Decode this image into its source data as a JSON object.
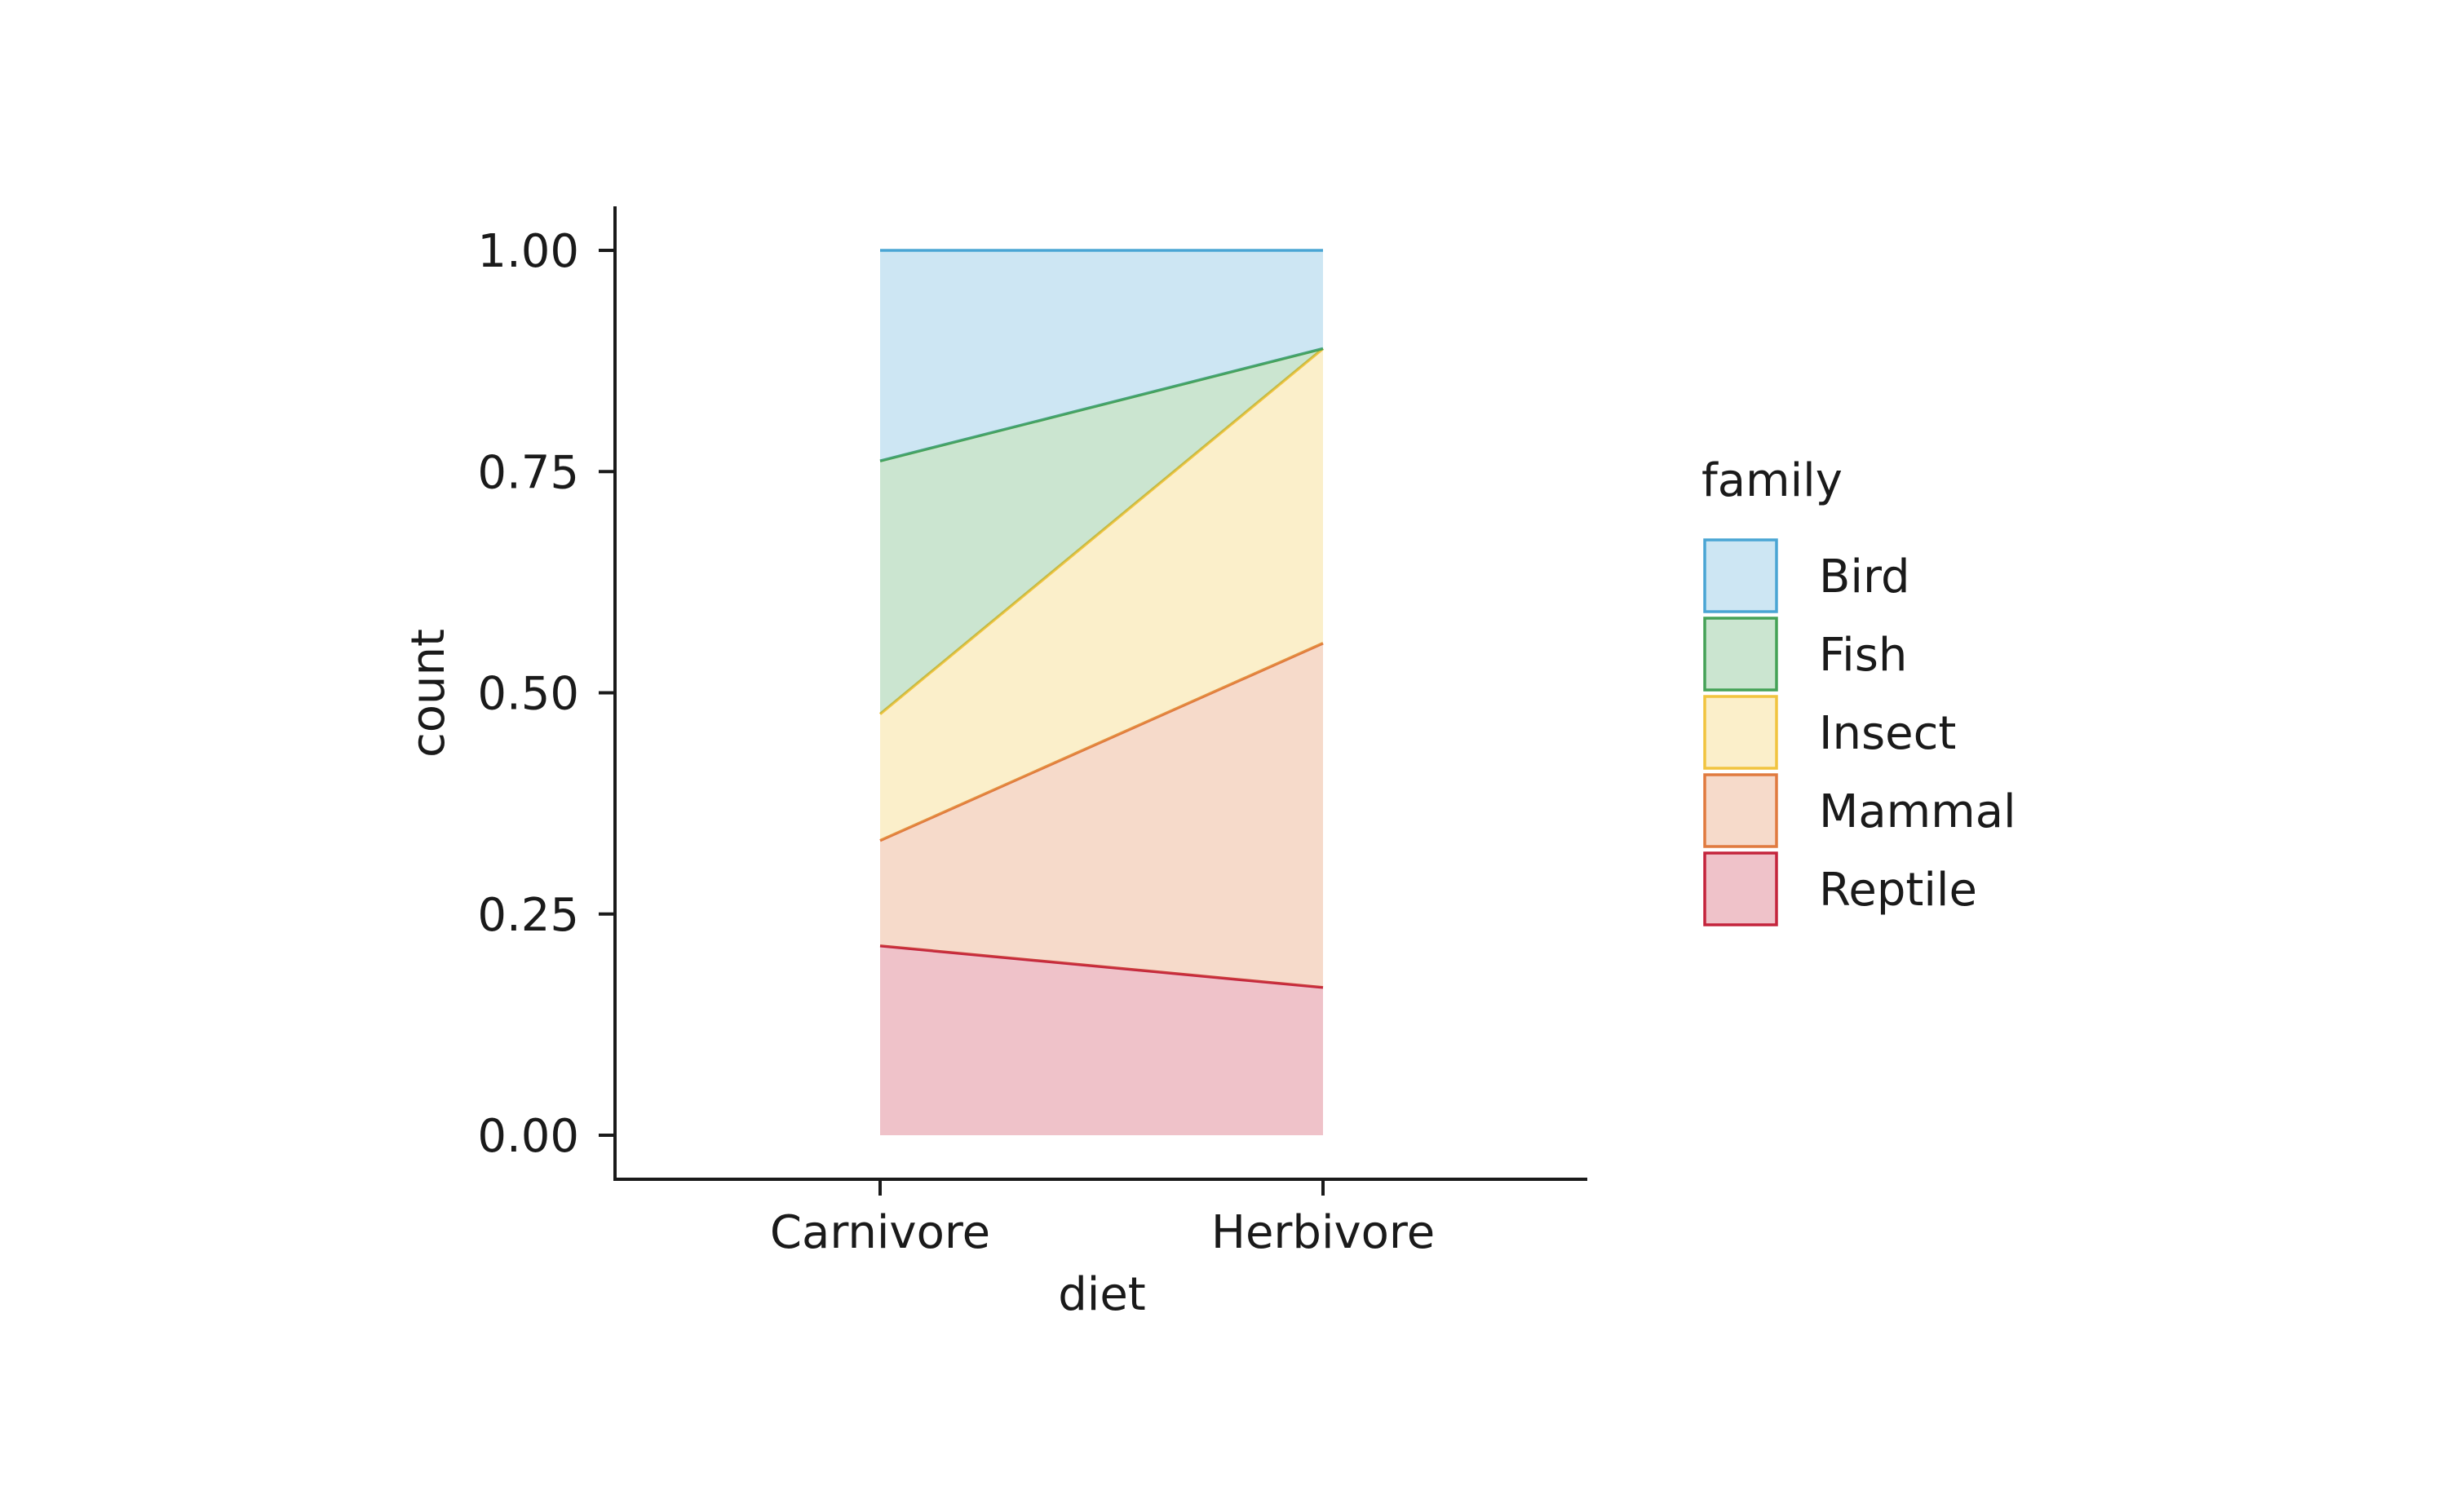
{
  "chart_data": {
    "type": "area",
    "stacked": true,
    "normalized": true,
    "categories": [
      "Carnivore",
      "Herbivore"
    ],
    "xlabel": "diet",
    "ylabel": "count",
    "ylim": [
      0,
      1
    ],
    "yticks": [
      0.0,
      0.25,
      0.5,
      0.75,
      1.0
    ],
    "ytick_labels": [
      "0.00",
      "0.25",
      "0.50",
      "0.75",
      "1.00"
    ],
    "grid": false,
    "legend": {
      "title": "family",
      "placement": "right"
    },
    "series": [
      {
        "name": "Reptile",
        "values": [
          0.214,
          0.167
        ],
        "color": "#c4243c"
      },
      {
        "name": "Mammal",
        "values": [
          0.119,
          0.389
        ],
        "color": "#e07a3f"
      },
      {
        "name": "Insect",
        "values": [
          0.143,
          0.333
        ],
        "color": "#f1c43f"
      },
      {
        "name": "Fish",
        "values": [
          0.286,
          0.0
        ],
        "color": "#45a257"
      },
      {
        "name": "Bird",
        "values": [
          0.238,
          0.111
        ],
        "color": "#4aa5d4"
      }
    ],
    "legend_order": [
      "Bird",
      "Fish",
      "Insect",
      "Mammal",
      "Reptile"
    ]
  }
}
